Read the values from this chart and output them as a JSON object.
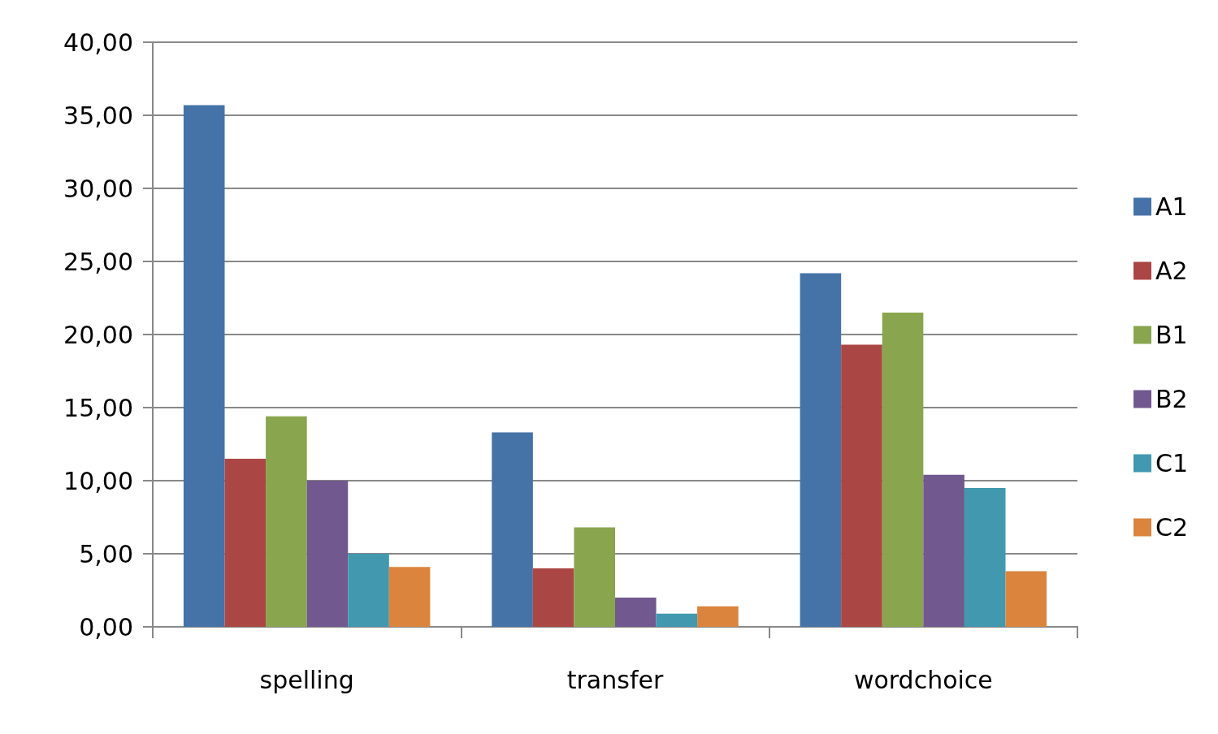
{
  "chart_data": {
    "type": "bar",
    "categories": [
      "spelling",
      "transfer",
      "wordchoice"
    ],
    "series": [
      {
        "name": "A1",
        "color": "#4572a7",
        "values": [
          35.7,
          13.3,
          24.2
        ]
      },
      {
        "name": "A2",
        "color": "#aa4643",
        "values": [
          11.5,
          4.0,
          19.3
        ]
      },
      {
        "name": "B1",
        "color": "#89a54e",
        "values": [
          14.4,
          6.8,
          21.5
        ]
      },
      {
        "name": "B2",
        "color": "#71588f",
        "values": [
          10.0,
          2.0,
          10.4
        ]
      },
      {
        "name": "C1",
        "color": "#4198af",
        "values": [
          5.0,
          0.9,
          9.5
        ]
      },
      {
        "name": "C2",
        "color": "#db843d",
        "values": [
          4.1,
          1.4,
          3.8
        ]
      }
    ],
    "ylim": [
      0,
      40
    ],
    "yticks": [
      {
        "value": 0,
        "label": "0,00"
      },
      {
        "value": 5,
        "label": "5,00"
      },
      {
        "value": 10,
        "label": "10,00"
      },
      {
        "value": 15,
        "label": "15,00"
      },
      {
        "value": 20,
        "label": "20,00"
      },
      {
        "value": 25,
        "label": "25,00"
      },
      {
        "value": 30,
        "label": "30,00"
      },
      {
        "value": 35,
        "label": "35,00"
      },
      {
        "value": 40,
        "label": "40,00"
      }
    ],
    "grid": "y",
    "legend": "right"
  }
}
